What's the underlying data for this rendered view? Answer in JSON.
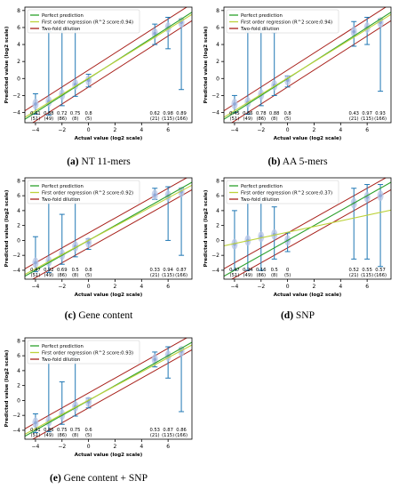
{
  "colors": {
    "perfect": "#2ca02c",
    "regression": "#bcd23a",
    "dilution": "#a8201a",
    "whisker": "#1f77b4",
    "violet": "#b6c4e6",
    "point": "#8fa8d8",
    "axis": "#000000"
  },
  "chart_data": [
    {
      "type": "scatter",
      "caption_letter": "(a)",
      "caption_text": " NT 11-mers",
      "xlabel": "Actual value (log2 scale)",
      "ylabel": "Predicted value (log2 scale)",
      "xlim": [
        -4.8,
        7.8
      ],
      "ylim": [
        -5.2,
        8.4
      ],
      "xticks": [
        -4,
        -2,
        0,
        2,
        4,
        6
      ],
      "yticks": [
        -4,
        -2,
        0,
        2,
        4,
        6,
        8
      ],
      "legend": {
        "position": "top-left",
        "perfect": "Perfect prediction",
        "regression": "First order regression (R^2 score:0.94)",
        "dilution": "Two-fold dilution"
      },
      "regression": {
        "slope": 0.96,
        "intercept": 0.05
      },
      "categories": [
        {
          "x": -4,
          "accuracy": "0.41",
          "count": "(51)",
          "low": -4.2,
          "high": -1.8,
          "median": -3.0
        },
        {
          "x": -3,
          "accuracy": "0.88",
          "count": "(49)",
          "low": -4.3,
          "high": 5.5,
          "median": -2.7
        },
        {
          "x": -2,
          "accuracy": "0.72",
          "count": "(86)",
          "low": -3.2,
          "high": 5.6,
          "median": -1.9
        },
        {
          "x": -1,
          "accuracy": "0.75",
          "count": "(8)",
          "low": -2.1,
          "high": 5.8,
          "median": -0.7
        },
        {
          "x": 0,
          "accuracy": "0.8",
          "count": "(5)",
          "low": -1.0,
          "high": 0.5,
          "median": -0.2
        },
        {
          "x": 5,
          "accuracy": "0.62",
          "count": "(21)",
          "low": 4.0,
          "high": 6.4,
          "median": 5.3
        },
        {
          "x": 6,
          "accuracy": "0.98",
          "count": "(115)",
          "low": 3.5,
          "high": 7.2,
          "median": 6.0
        },
        {
          "x": 7,
          "accuracy": "0.89",
          "count": "(166)",
          "low": -1.3,
          "high": 7.0,
          "median": 6.6
        }
      ]
    },
    {
      "type": "scatter",
      "caption_letter": "(b)",
      "caption_text": " AA 5-mers",
      "xlabel": "Actual value (log2 scale)",
      "ylabel": "Predicted value (log2 scale)",
      "xlim": [
        -4.8,
        7.8
      ],
      "ylim": [
        -5.2,
        8.4
      ],
      "xticks": [
        -4,
        -2,
        0,
        2,
        4,
        6
      ],
      "yticks": [
        -4,
        -2,
        0,
        2,
        4,
        6,
        8
      ],
      "legend": {
        "position": "top-left",
        "perfect": "Perfect prediction",
        "regression": "First order regression (R^2 score:0.94)",
        "dilution": "Two-fold dilution"
      },
      "regression": {
        "slope": 0.96,
        "intercept": 0.05
      },
      "categories": [
        {
          "x": -4,
          "accuracy": "0.45",
          "count": "(51)",
          "low": -4.0,
          "high": -2.0,
          "median": -3.0
        },
        {
          "x": -3,
          "accuracy": "0.86",
          "count": "(49)",
          "low": -4.2,
          "high": 5.5,
          "median": -2.8
        },
        {
          "x": -2,
          "accuracy": "0.78",
          "count": "(86)",
          "low": -3.2,
          "high": 5.7,
          "median": -1.9
        },
        {
          "x": -1,
          "accuracy": "0.88",
          "count": "(8)",
          "low": -2.0,
          "high": 5.4,
          "median": -0.8
        },
        {
          "x": 0,
          "accuracy": "0.8",
          "count": "(5)",
          "low": -1.0,
          "high": 0.3,
          "median": -0.2
        },
        {
          "x": 5,
          "accuracy": "0.43",
          "count": "(21)",
          "low": 3.8,
          "high": 6.7,
          "median": 5.5
        },
        {
          "x": 6,
          "accuracy": "0.97",
          "count": "(115)",
          "low": 4.0,
          "high": 7.2,
          "median": 6.0
        },
        {
          "x": 7,
          "accuracy": "0.93",
          "count": "(166)",
          "low": -1.5,
          "high": 7.0,
          "median": 6.6
        }
      ]
    },
    {
      "type": "scatter",
      "caption_letter": "(c)",
      "caption_text": " Gene content",
      "xlabel": "Actual value (log2 scale)",
      "ylabel": "Predicted value (log2 scale)",
      "xlim": [
        -4.8,
        7.8
      ],
      "ylim": [
        -5.2,
        8.4
      ],
      "xticks": [
        -4,
        -2,
        0,
        2,
        4,
        6
      ],
      "yticks": [
        -4,
        -2,
        0,
        2,
        4,
        6,
        8
      ],
      "legend": {
        "position": "top-left",
        "perfect": "Perfect prediction",
        "regression": "First order regression (R^2 score:0.92)",
        "dilution": "Two-fold dilution"
      },
      "regression": {
        "slope": 0.95,
        "intercept": 0.0
      },
      "categories": [
        {
          "x": -4,
          "accuracy": "0.47",
          "count": "(51)",
          "low": -4.2,
          "high": 0.5,
          "median": -3.0
        },
        {
          "x": -3,
          "accuracy": "0.92",
          "count": "(49)",
          "low": -4.3,
          "high": 5.8,
          "median": -2.8
        },
        {
          "x": -2,
          "accuracy": "0.69",
          "count": "(86)",
          "low": -3.2,
          "high": 3.5,
          "median": -1.9
        },
        {
          "x": -1,
          "accuracy": "0.5",
          "count": "(8)",
          "low": -2.2,
          "high": 5.7,
          "median": -0.8
        },
        {
          "x": 0,
          "accuracy": "0.8",
          "count": "(5)",
          "low": -1.2,
          "high": 0.2,
          "median": -0.3
        },
        {
          "x": 5,
          "accuracy": "0.33",
          "count": "(21)",
          "low": 5.5,
          "high": 7.0,
          "median": 6.1
        },
        {
          "x": 6,
          "accuracy": "0.94",
          "count": "(115)",
          "low": 0.0,
          "high": 7.2,
          "median": 6.0
        },
        {
          "x": 7,
          "accuracy": "0.87",
          "count": "(166)",
          "low": -2.0,
          "high": 7.0,
          "median": 6.5
        }
      ]
    },
    {
      "type": "scatter",
      "caption_letter": "(d)",
      "caption_text": " SNP",
      "xlabel": "Actual value (log2 scale)",
      "ylabel": "Predicted value (log2 scale)",
      "xlim": [
        -4.8,
        7.8
      ],
      "ylim": [
        -5.2,
        8.4
      ],
      "xticks": [
        -4,
        -2,
        0,
        2,
        4,
        6
      ],
      "yticks": [
        -4,
        -2,
        0,
        2,
        4,
        6,
        8
      ],
      "legend": {
        "position": "top-left",
        "perfect": "Perfect prediction",
        "regression": "First order regression (R^2 score:0.37)",
        "dilution": "Two-fold dilution"
      },
      "regression": {
        "slope": 0.38,
        "intercept": 1.1
      },
      "categories": [
        {
          "x": -4,
          "accuracy": "0.47",
          "count": "(51)",
          "low": -4.0,
          "high": 4.0,
          "median": -0.5
        },
        {
          "x": -3,
          "accuracy": "0.24",
          "count": "(49)",
          "low": -4.0,
          "high": 7.0,
          "median": 0.0
        },
        {
          "x": -2,
          "accuracy": "0.16",
          "count": "(86)",
          "low": -4.0,
          "high": 7.2,
          "median": 0.5
        },
        {
          "x": -1,
          "accuracy": "0.5",
          "count": "(8)",
          "low": -2.5,
          "high": 4.5,
          "median": 0.8
        },
        {
          "x": 0,
          "accuracy": "0",
          "count": "(5)",
          "low": -1.5,
          "high": 1.0,
          "median": 0.0
        },
        {
          "x": 5,
          "accuracy": "0.52",
          "count": "(21)",
          "low": -2.5,
          "high": 7.0,
          "median": 5.0
        },
        {
          "x": 6,
          "accuracy": "0.55",
          "count": "(115)",
          "low": -2.5,
          "high": 7.5,
          "median": 5.8
        },
        {
          "x": 7,
          "accuracy": "0.57",
          "count": "(166)",
          "low": -3.5,
          "high": 7.5,
          "median": 6.0
        }
      ]
    },
    {
      "type": "scatter",
      "caption_letter": "(e)",
      "caption_text": " Gene content + SNP",
      "xlabel": "Actual value (log2 scale)",
      "ylabel": "Predicted value (log2 scale)",
      "xlim": [
        -4.8,
        7.8
      ],
      "ylim": [
        -5.2,
        8.4
      ],
      "xticks": [
        -4,
        -2,
        0,
        2,
        4,
        6
      ],
      "yticks": [
        -4,
        -2,
        0,
        2,
        4,
        6,
        8
      ],
      "legend": {
        "position": "top-left",
        "perfect": "Perfect prediction",
        "regression": "First order regression (R^2 score:0.93)",
        "dilution": "Two-fold dilution"
      },
      "regression": {
        "slope": 0.95,
        "intercept": 0.03
      },
      "categories": [
        {
          "x": -4,
          "accuracy": "0.41",
          "count": "(51)",
          "low": -4.3,
          "high": -1.8,
          "median": -3.0
        },
        {
          "x": -3,
          "accuracy": "0.86",
          "count": "(49)",
          "low": -4.2,
          "high": 6.0,
          "median": -2.8
        },
        {
          "x": -2,
          "accuracy": "0.75",
          "count": "(86)",
          "low": -3.2,
          "high": 2.5,
          "median": -1.9
        },
        {
          "x": -1,
          "accuracy": "0.75",
          "count": "(8)",
          "low": -2.1,
          "high": 6.0,
          "median": -0.8
        },
        {
          "x": 0,
          "accuracy": "0.6",
          "count": "(5)",
          "low": -1.0,
          "high": 0.3,
          "median": -0.2
        },
        {
          "x": 5,
          "accuracy": "0.53",
          "count": "(21)",
          "low": 4.5,
          "high": 6.5,
          "median": 5.5
        },
        {
          "x": 6,
          "accuracy": "0.87",
          "count": "(115)",
          "low": 3.0,
          "high": 7.2,
          "median": 6.0
        },
        {
          "x": 7,
          "accuracy": "0.86",
          "count": "(166)",
          "low": -1.5,
          "high": 7.0,
          "median": 6.6
        }
      ]
    }
  ]
}
